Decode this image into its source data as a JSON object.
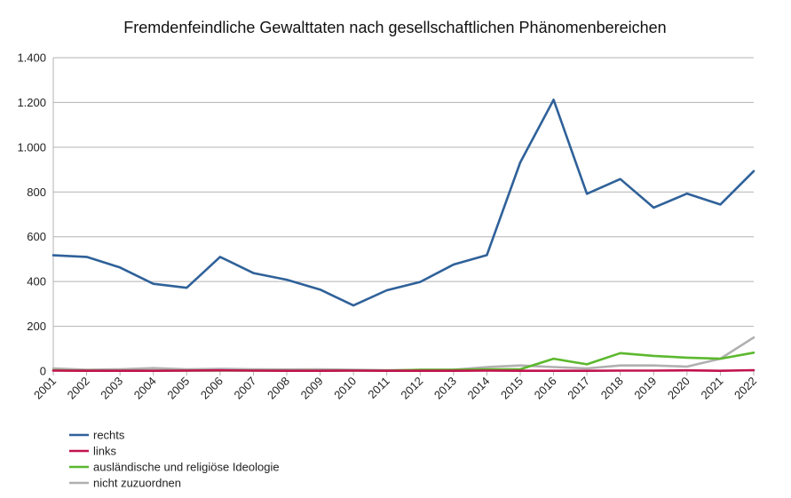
{
  "chart_data": {
    "type": "line",
    "title": "Fremdenfeindliche Gewalttaten nach gesellschaftlichen Phänomenbereichen",
    "xlabel": "",
    "ylabel": "",
    "categories": [
      "2001",
      "2002",
      "2003",
      "2004",
      "2005",
      "2006",
      "2007",
      "2008",
      "2009",
      "2010",
      "2011",
      "2012",
      "2013",
      "2014",
      "2015",
      "2016",
      "2017",
      "2018",
      "2019",
      "2020",
      "2021",
      "2022"
    ],
    "ylim": [
      0,
      1400
    ],
    "yticks": [
      0,
      200,
      400,
      600,
      800,
      1000,
      1200,
      1400
    ],
    "ytick_labels": [
      "0",
      "200",
      "400",
      "600",
      "800",
      "1.000",
      "1.200",
      "1.400"
    ],
    "grid": true,
    "legend_position": "bottom-left",
    "series": [
      {
        "name": "rechts",
        "color": "#2f6199",
        "values": [
          517,
          510,
          463,
          390,
          372,
          510,
          438,
          408,
          364,
          293,
          361,
          398,
          476,
          518,
          932,
          1212,
          792,
          858,
          730,
          793,
          744,
          893
        ]
      },
      {
        "name": "links",
        "color": "#c2134f",
        "values": [
          2,
          1,
          1,
          1,
          2,
          3,
          2,
          1,
          1,
          2,
          1,
          1,
          1,
          2,
          1,
          1,
          1,
          2,
          2,
          3,
          1,
          4
        ]
      },
      {
        "name": "ausländische und religiöse Ideologie",
        "color": "#5cb82e",
        "values": [
          3,
          2,
          2,
          2,
          2,
          2,
          2,
          2,
          2,
          2,
          2,
          6,
          6,
          8,
          8,
          55,
          30,
          80,
          68,
          60,
          55,
          82
        ]
      },
      {
        "name": "nicht zuzuordnen",
        "color": "#b0b0b0",
        "values": [
          12,
          6,
          8,
          13,
          8,
          10,
          8,
          7,
          8,
          6,
          4,
          5,
          6,
          18,
          25,
          18,
          12,
          25,
          25,
          20,
          55,
          150
        ]
      }
    ]
  }
}
